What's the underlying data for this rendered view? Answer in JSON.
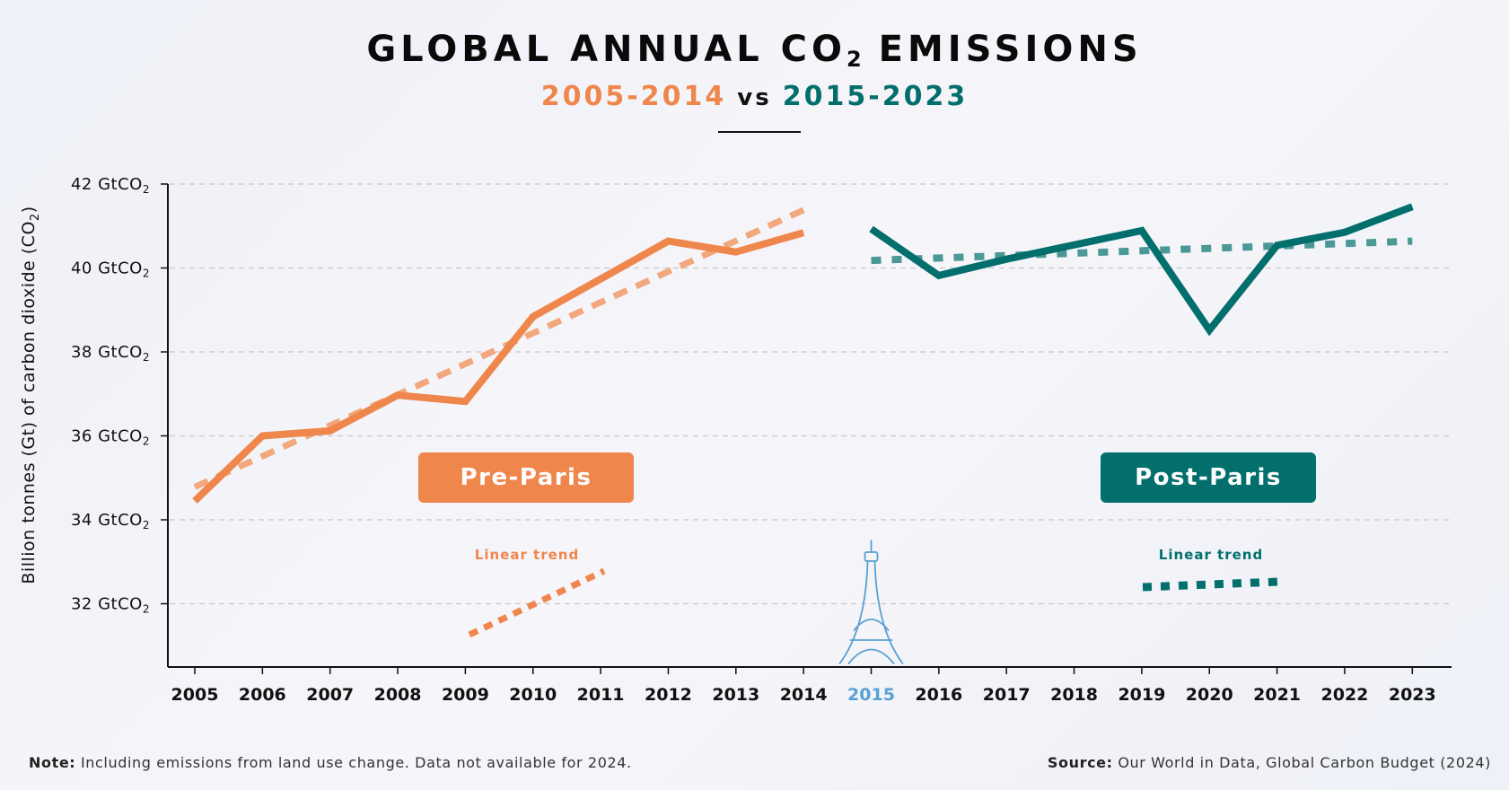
{
  "header": {
    "title_main": "GLOBAL ANNUAL CO",
    "title_sub": "2",
    "title_end": " EMISSIONS",
    "subtitle_pre": "2005-2014",
    "subtitle_vs": " vs ",
    "subtitle_post": "2015-2023"
  },
  "yaxis_label": {
    "text": "Billion tonnes (Gt) of carbon dioxide (CO",
    "sub": "2",
    "end": ")"
  },
  "badges": {
    "pre": "Pre-Paris",
    "post": "Post-Paris"
  },
  "legend": {
    "pre": "Linear trend",
    "post": "Linear trend"
  },
  "footer": {
    "note_label": "Note:",
    "note_text": " Including emissions from land use change. Data not available for 2024.",
    "source_label": "Source:",
    "source_text": " Our World in Data, Global Carbon Budget (2024)"
  },
  "colors": {
    "pre": "#ef864c",
    "pre_trend": "#f2a77c",
    "post": "#036f6d",
    "post_trend": "#4b9896",
    "highlight_year": "#5aa0d2",
    "grid": "#c8c8cc",
    "axis": "#111111"
  },
  "chart_data": {
    "type": "line",
    "title": "GLOBAL ANNUAL CO2 EMISSIONS",
    "subtitle": "2005-2014 vs 2015-2023",
    "xlabel": "",
    "ylabel": "Billion tonnes (Gt) of carbon dioxide (CO2)",
    "ylim": [
      30.5,
      42
    ],
    "yticks": [
      32,
      34,
      36,
      38,
      40,
      42
    ],
    "ytick_suffix": " GtCO",
    "ytick_suffix_sub": "2",
    "x": [
      2005,
      2006,
      2007,
      2008,
      2009,
      2010,
      2011,
      2012,
      2013,
      2014,
      2015,
      2016,
      2017,
      2018,
      2019,
      2020,
      2021,
      2022,
      2023
    ],
    "highlight_x": 2015,
    "grid": true,
    "legend_placement": "bottom-inside",
    "series": [
      {
        "name": "Pre-Paris",
        "style": "solid",
        "x": [
          2005,
          2006,
          2007,
          2008,
          2009,
          2010,
          2011,
          2012,
          2013,
          2014
        ],
        "values": [
          34.45,
          36.0,
          36.12,
          36.97,
          36.82,
          38.84,
          39.74,
          40.64,
          40.38,
          40.84
        ]
      },
      {
        "name": "Pre-Paris linear trend",
        "style": "dashed",
        "x": [
          2005,
          2014
        ],
        "values": [
          34.78,
          41.38
        ]
      },
      {
        "name": "Post-Paris",
        "style": "solid",
        "x": [
          2015,
          2016,
          2017,
          2018,
          2019,
          2020,
          2021,
          2022,
          2023
        ],
        "values": [
          40.93,
          39.82,
          40.21,
          40.55,
          40.89,
          38.52,
          40.54,
          40.85,
          41.46
        ]
      },
      {
        "name": "Post-Paris linear trend",
        "style": "dotted",
        "x": [
          2015,
          2023
        ],
        "values": [
          40.18,
          40.64
        ]
      }
    ],
    "annotations": [
      "Pre-Paris",
      "Post-Paris",
      "Linear trend",
      "Eiffel Tower icon at 2015"
    ]
  }
}
